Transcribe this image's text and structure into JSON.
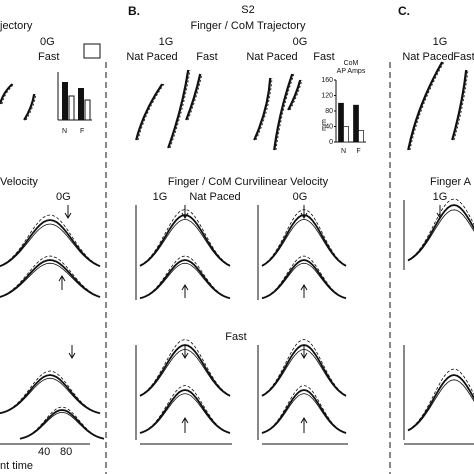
{
  "panel_a": {
    "title": "jectory",
    "gravity": "0G",
    "speed": "Fast",
    "velocity_title": "Velocity",
    "velocity_gravity": "0G",
    "x_ticks": [
      "40",
      "80"
    ],
    "x_label": "nt time",
    "inset_categories": [
      "N",
      "F"
    ]
  },
  "panel_b": {
    "letter": "B.",
    "subject": "S2",
    "title": "Finger / CoM Trajectory",
    "gravity_1": "1G",
    "gravity_2": "0G",
    "speeds_1": [
      "Nat Paced",
      "Fast"
    ],
    "speeds_2": [
      "Nat Paced",
      "Fast"
    ],
    "velocity_title": "Finger / CoM Curvilinear Velocity",
    "velocity_gravity_1": "1G",
    "velocity_speed_1": "Nat Paced",
    "velocity_gravity_2": "0G",
    "velocity_speed_2": "Fast",
    "inset": {
      "type": "bar",
      "title": "CoM",
      "subtitle": "AP Amps",
      "y_label": "mm",
      "categories": [
        "N",
        "F"
      ],
      "series": [
        {
          "color": "#111111",
          "values": [
            100,
            95
          ]
        },
        {
          "color": "#ffffff",
          "values": [
            40,
            30
          ]
        }
      ],
      "ylim": [
        0,
        160
      ],
      "yticks": [
        0,
        40,
        80,
        120,
        160
      ]
    }
  },
  "panel_c": {
    "letter": "C.",
    "gravity": "1G",
    "speeds": [
      "Nat Paced",
      "Fast"
    ],
    "velocity_title": "Finger A",
    "velocity_gravity": "1G"
  }
}
